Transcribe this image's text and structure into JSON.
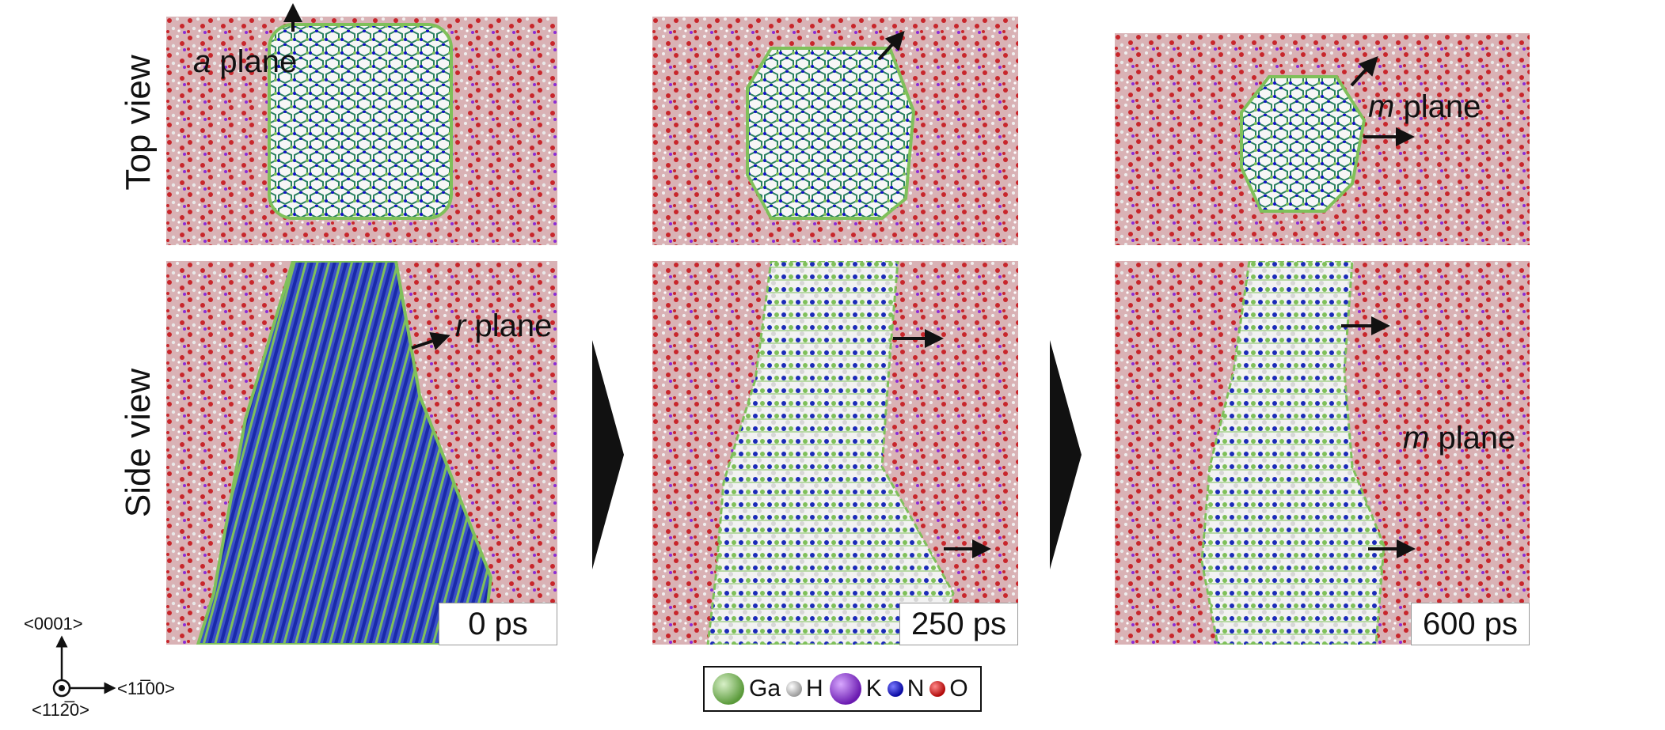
{
  "row_labels": {
    "top": "Top view",
    "side": "Side view"
  },
  "annotations": {
    "a_plane": {
      "italic": "a",
      "rest": " plane"
    },
    "r_plane": {
      "italic": "r",
      "rest": " plane"
    },
    "m_plane_top": {
      "italic": "m",
      "rest": " plane"
    },
    "m_plane_side": {
      "italic": "m",
      "rest": " plane"
    }
  },
  "times": [
    "0 ps",
    "250 ps",
    "600 ps"
  ],
  "legend": [
    {
      "label": "Ga",
      "color": "#7fc05a",
      "size": "large"
    },
    {
      "label": "H",
      "color": "#d8d8d8",
      "size": "small"
    },
    {
      "label": "K",
      "color": "#8a2bd6",
      "size": "large"
    },
    {
      "label": "N",
      "color": "#1010c8",
      "size": "small"
    },
    {
      "label": "O",
      "color": "#d01010",
      "size": "small"
    }
  ],
  "axes": {
    "up": "<0001>",
    "right": "<11̅00>",
    "out": "<112̅0>"
  },
  "colors": {
    "water_red": "#c8262b",
    "water_pink": "#d9a3a8",
    "crystal_blue": "#2040c0",
    "crystal_green": "#7fc05a",
    "crystal_white": "#f4f4f4"
  }
}
